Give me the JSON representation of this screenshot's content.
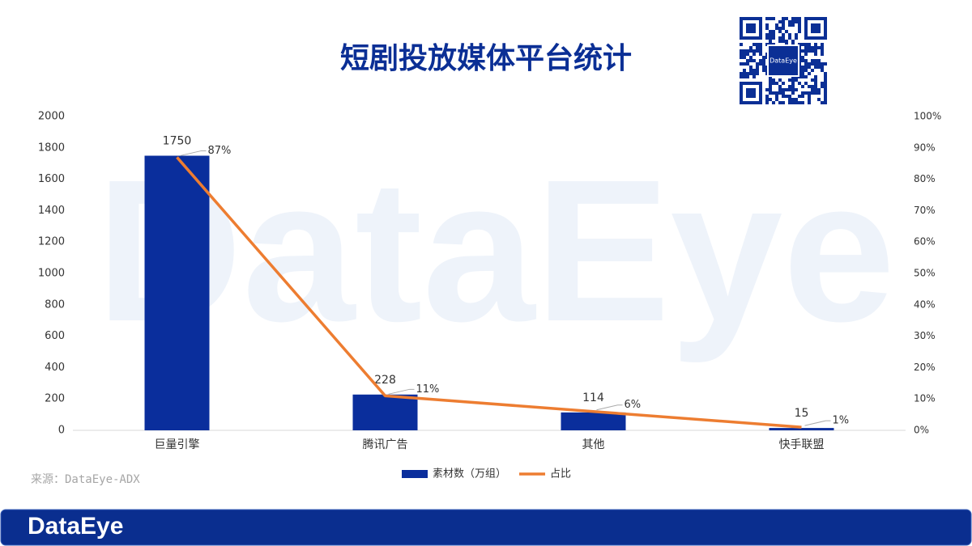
{
  "watermark": "DataEye",
  "qr_label": "DataEye",
  "source": "来源：DataEye-ADX",
  "logo": "DataEye",
  "chart_data": {
    "type": "bar",
    "title": "短剧投放媒体平台统计",
    "categories": [
      "巨量引擎",
      "腾讯广告",
      "其他",
      "快手联盟"
    ],
    "series": [
      {
        "name": "素材数（万组）",
        "type": "bar",
        "color": "#0a2e9c",
        "values": [
          1750,
          228,
          114,
          15
        ]
      },
      {
        "name": "占比",
        "type": "line",
        "axis": "y2",
        "color": "#ed7d31",
        "values": [
          87,
          11,
          6,
          1
        ],
        "value_labels": [
          "87%",
          "11%",
          "6%",
          "1%"
        ]
      }
    ],
    "ylim": [
      0,
      2000
    ],
    "yticks": [
      0,
      200,
      400,
      600,
      800,
      1000,
      1200,
      1400,
      1600,
      1800,
      2000
    ],
    "y2lim": [
      0,
      100
    ],
    "y2ticks": [
      {
        "value": 0,
        "label": "0%"
      },
      {
        "value": 10,
        "label": "10%"
      },
      {
        "value": 20,
        "label": "20%"
      },
      {
        "value": 30,
        "label": "30%"
      },
      {
        "value": 40,
        "label": "40%"
      },
      {
        "value": 50,
        "label": "50%"
      },
      {
        "value": 60,
        "label": "60%"
      },
      {
        "value": 70,
        "label": "70%"
      },
      {
        "value": 80,
        "label": "80%"
      },
      {
        "value": 90,
        "label": "90%"
      },
      {
        "value": 100,
        "label": "100%"
      }
    ],
    "grid": false,
    "legend": "bottom"
  }
}
